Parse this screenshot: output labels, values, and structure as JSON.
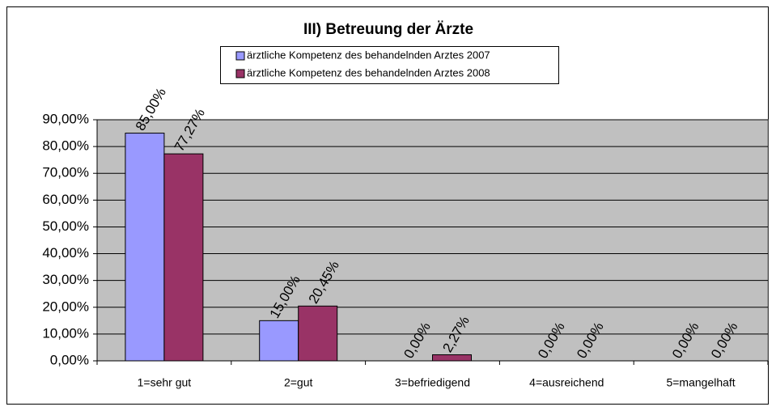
{
  "chart_data": {
    "type": "bar",
    "title": "III) Betreuung der Ärzte",
    "categories": [
      "1=sehr gut",
      "2=gut",
      "3=befriedigend",
      "4=ausreichend",
      "5=mangelhaft"
    ],
    "series": [
      {
        "name": "ärztliche Kompetenz des behandelnden Arztes 2007",
        "color": "#9999ff",
        "values": [
          85,
          15,
          0,
          0,
          0
        ],
        "value_labels": [
          "85,00%",
          "15,00%",
          "0,00%",
          "0,00%",
          "0,00%"
        ]
      },
      {
        "name": "ärztliche Kompetenz des behandelnden Arztes 2008",
        "color": "#993366",
        "values": [
          77.27,
          20.45,
          2.27,
          0,
          0
        ],
        "value_labels": [
          "77,27%",
          "20,45%",
          "2,27%",
          "0,00%",
          "0,00%"
        ]
      }
    ],
    "ylim": [
      0,
      90
    ],
    "yticks": [
      {
        "value": 0,
        "label": "0,00%"
      },
      {
        "value": 10,
        "label": "10,00%"
      },
      {
        "value": 20,
        "label": "20,00%"
      },
      {
        "value": 30,
        "label": "30,00%"
      },
      {
        "value": 40,
        "label": "40,00%"
      },
      {
        "value": 50,
        "label": "50,00%"
      },
      {
        "value": 60,
        "label": "60,00%"
      },
      {
        "value": 70,
        "label": "70,00%"
      },
      {
        "value": 80,
        "label": "80,00%"
      },
      {
        "value": 90,
        "label": "90,00%"
      }
    ],
    "grid": true,
    "legend": "top"
  }
}
